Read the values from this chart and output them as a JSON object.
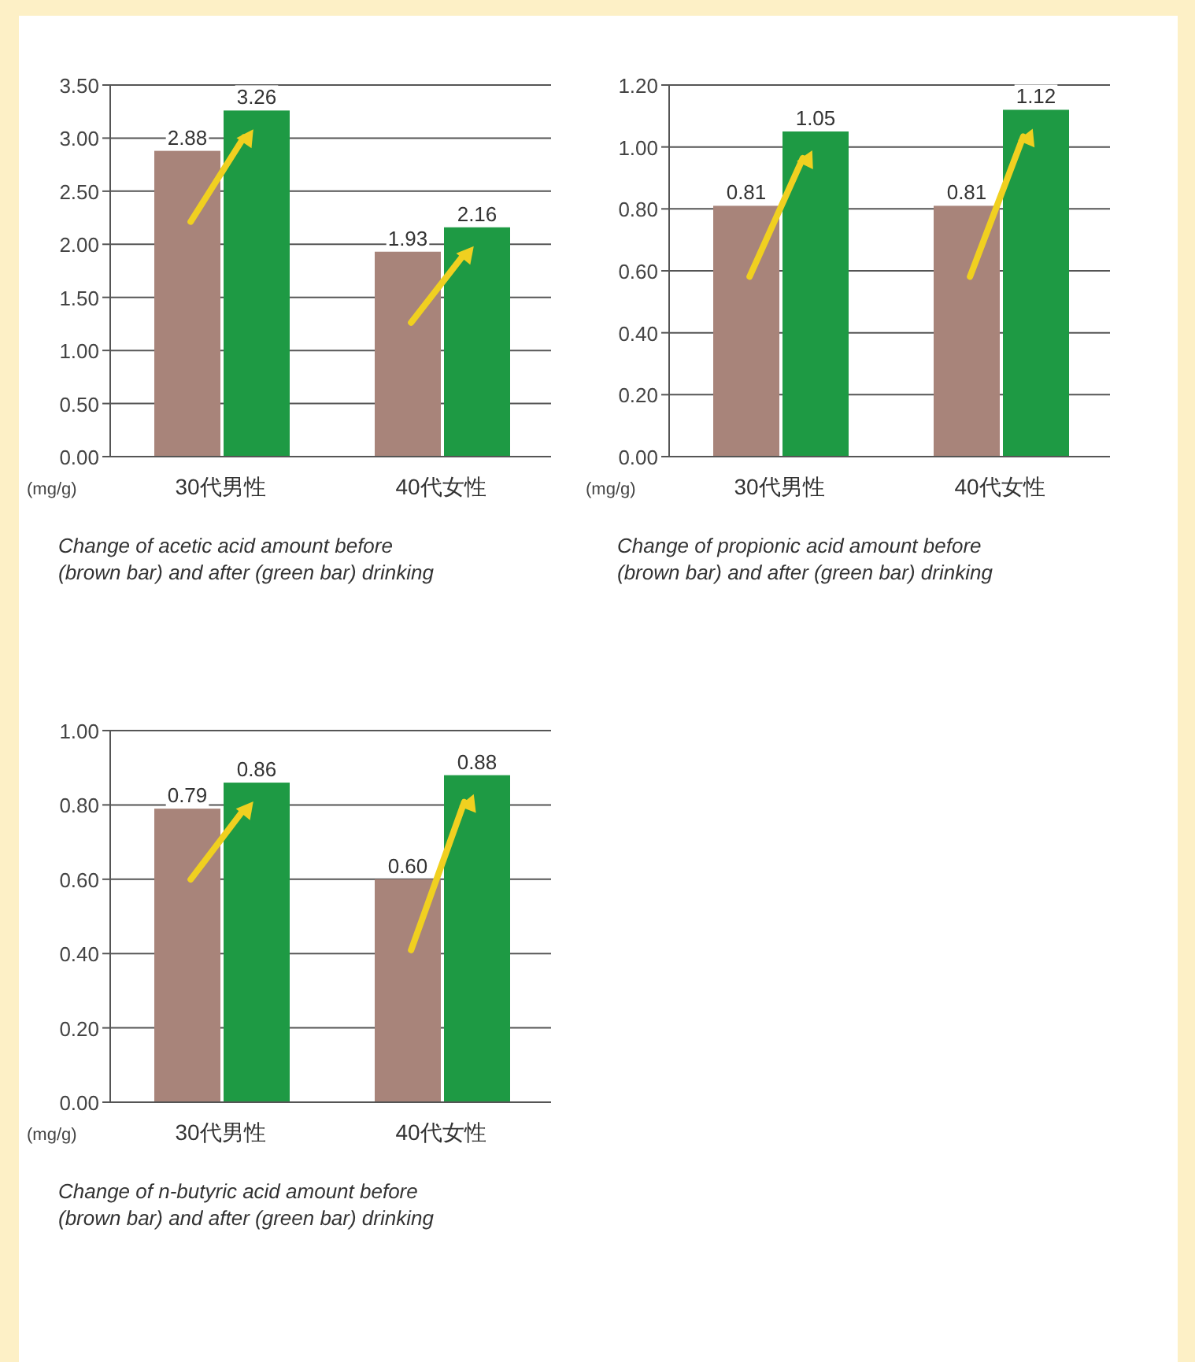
{
  "chart_data": [
    {
      "type": "bar",
      "categories": [
        "30代男性",
        "40代女性"
      ],
      "ylabel": "(mg/g)",
      "ylim": [
        0,
        3.5
      ],
      "yticks": [
        {
          "value": 0,
          "label": "0.00"
        },
        {
          "value": 0.5,
          "label": "0.50"
        },
        {
          "value": 1,
          "label": "1.00"
        },
        {
          "value": 1.5,
          "label": "1.50"
        },
        {
          "value": 2,
          "label": "2.00"
        },
        {
          "value": 2.5,
          "label": "2.50"
        },
        {
          "value": 3,
          "label": "3.00"
        },
        {
          "value": 3.5,
          "label": "3.50"
        }
      ],
      "grid": "y",
      "series": [
        {
          "color": "#a8847a",
          "values": [
            2.88,
            1.93
          ],
          "value_labels": [
            "2.88",
            "1.93"
          ]
        },
        {
          "color": "#1e9a44",
          "values": [
            3.26,
            2.16
          ],
          "value_labels": [
            "3.26",
            "2.16"
          ]
        }
      ],
      "annotations": [
        "Change of acetic acid amount before (brown bar) and after (green bar) drinking"
      ]
    },
    {
      "type": "bar",
      "categories": [
        "30代男性",
        "40代女性"
      ],
      "ylabel": "(mg/g)",
      "ylim": [
        0,
        1.2
      ],
      "yticks": [
        {
          "value": 0,
          "label": "0.00"
        },
        {
          "value": 0.2,
          "label": "0.20"
        },
        {
          "value": 0.4,
          "label": "0.40"
        },
        {
          "value": 0.6,
          "label": "0.60"
        },
        {
          "value": 0.8,
          "label": "0.80"
        },
        {
          "value": 1,
          "label": "1.00"
        },
        {
          "value": 1.2,
          "label": "1.20"
        }
      ],
      "grid": "y",
      "series": [
        {
          "color": "#a8847a",
          "values": [
            0.81,
            0.81
          ],
          "value_labels": [
            "0.81",
            "0.81"
          ]
        },
        {
          "color": "#1e9a44",
          "values": [
            1.05,
            1.12
          ],
          "value_labels": [
            "1.05",
            "1.12"
          ]
        }
      ],
      "annotations": [
        "Change of propionic acid amount before (brown bar) and after (green bar) drinking"
      ]
    },
    {
      "type": "bar",
      "categories": [
        "30代男性",
        "40代女性"
      ],
      "ylabel": "(mg/g)",
      "ylim": [
        0,
        1
      ],
      "yticks": [
        {
          "value": 0,
          "label": "0.00"
        },
        {
          "value": 0.2,
          "label": "0.20"
        },
        {
          "value": 0.4,
          "label": "0.40"
        },
        {
          "value": 0.6,
          "label": "0.60"
        },
        {
          "value": 0.8,
          "label": "0.80"
        },
        {
          "value": 1,
          "label": "1.00"
        }
      ],
      "grid": "y",
      "series": [
        {
          "color": "#a8847a",
          "values": [
            0.79,
            0.6
          ],
          "value_labels": [
            "0.79",
            "0.60"
          ]
        },
        {
          "color": "#1e9a44",
          "values": [
            0.86,
            0.88
          ],
          "value_labels": [
            "0.86",
            "0.88"
          ]
        }
      ],
      "annotations": [
        "Change of n-butyric acid amount before (brown bar) and after (green bar) drinking"
      ]
    }
  ]
}
